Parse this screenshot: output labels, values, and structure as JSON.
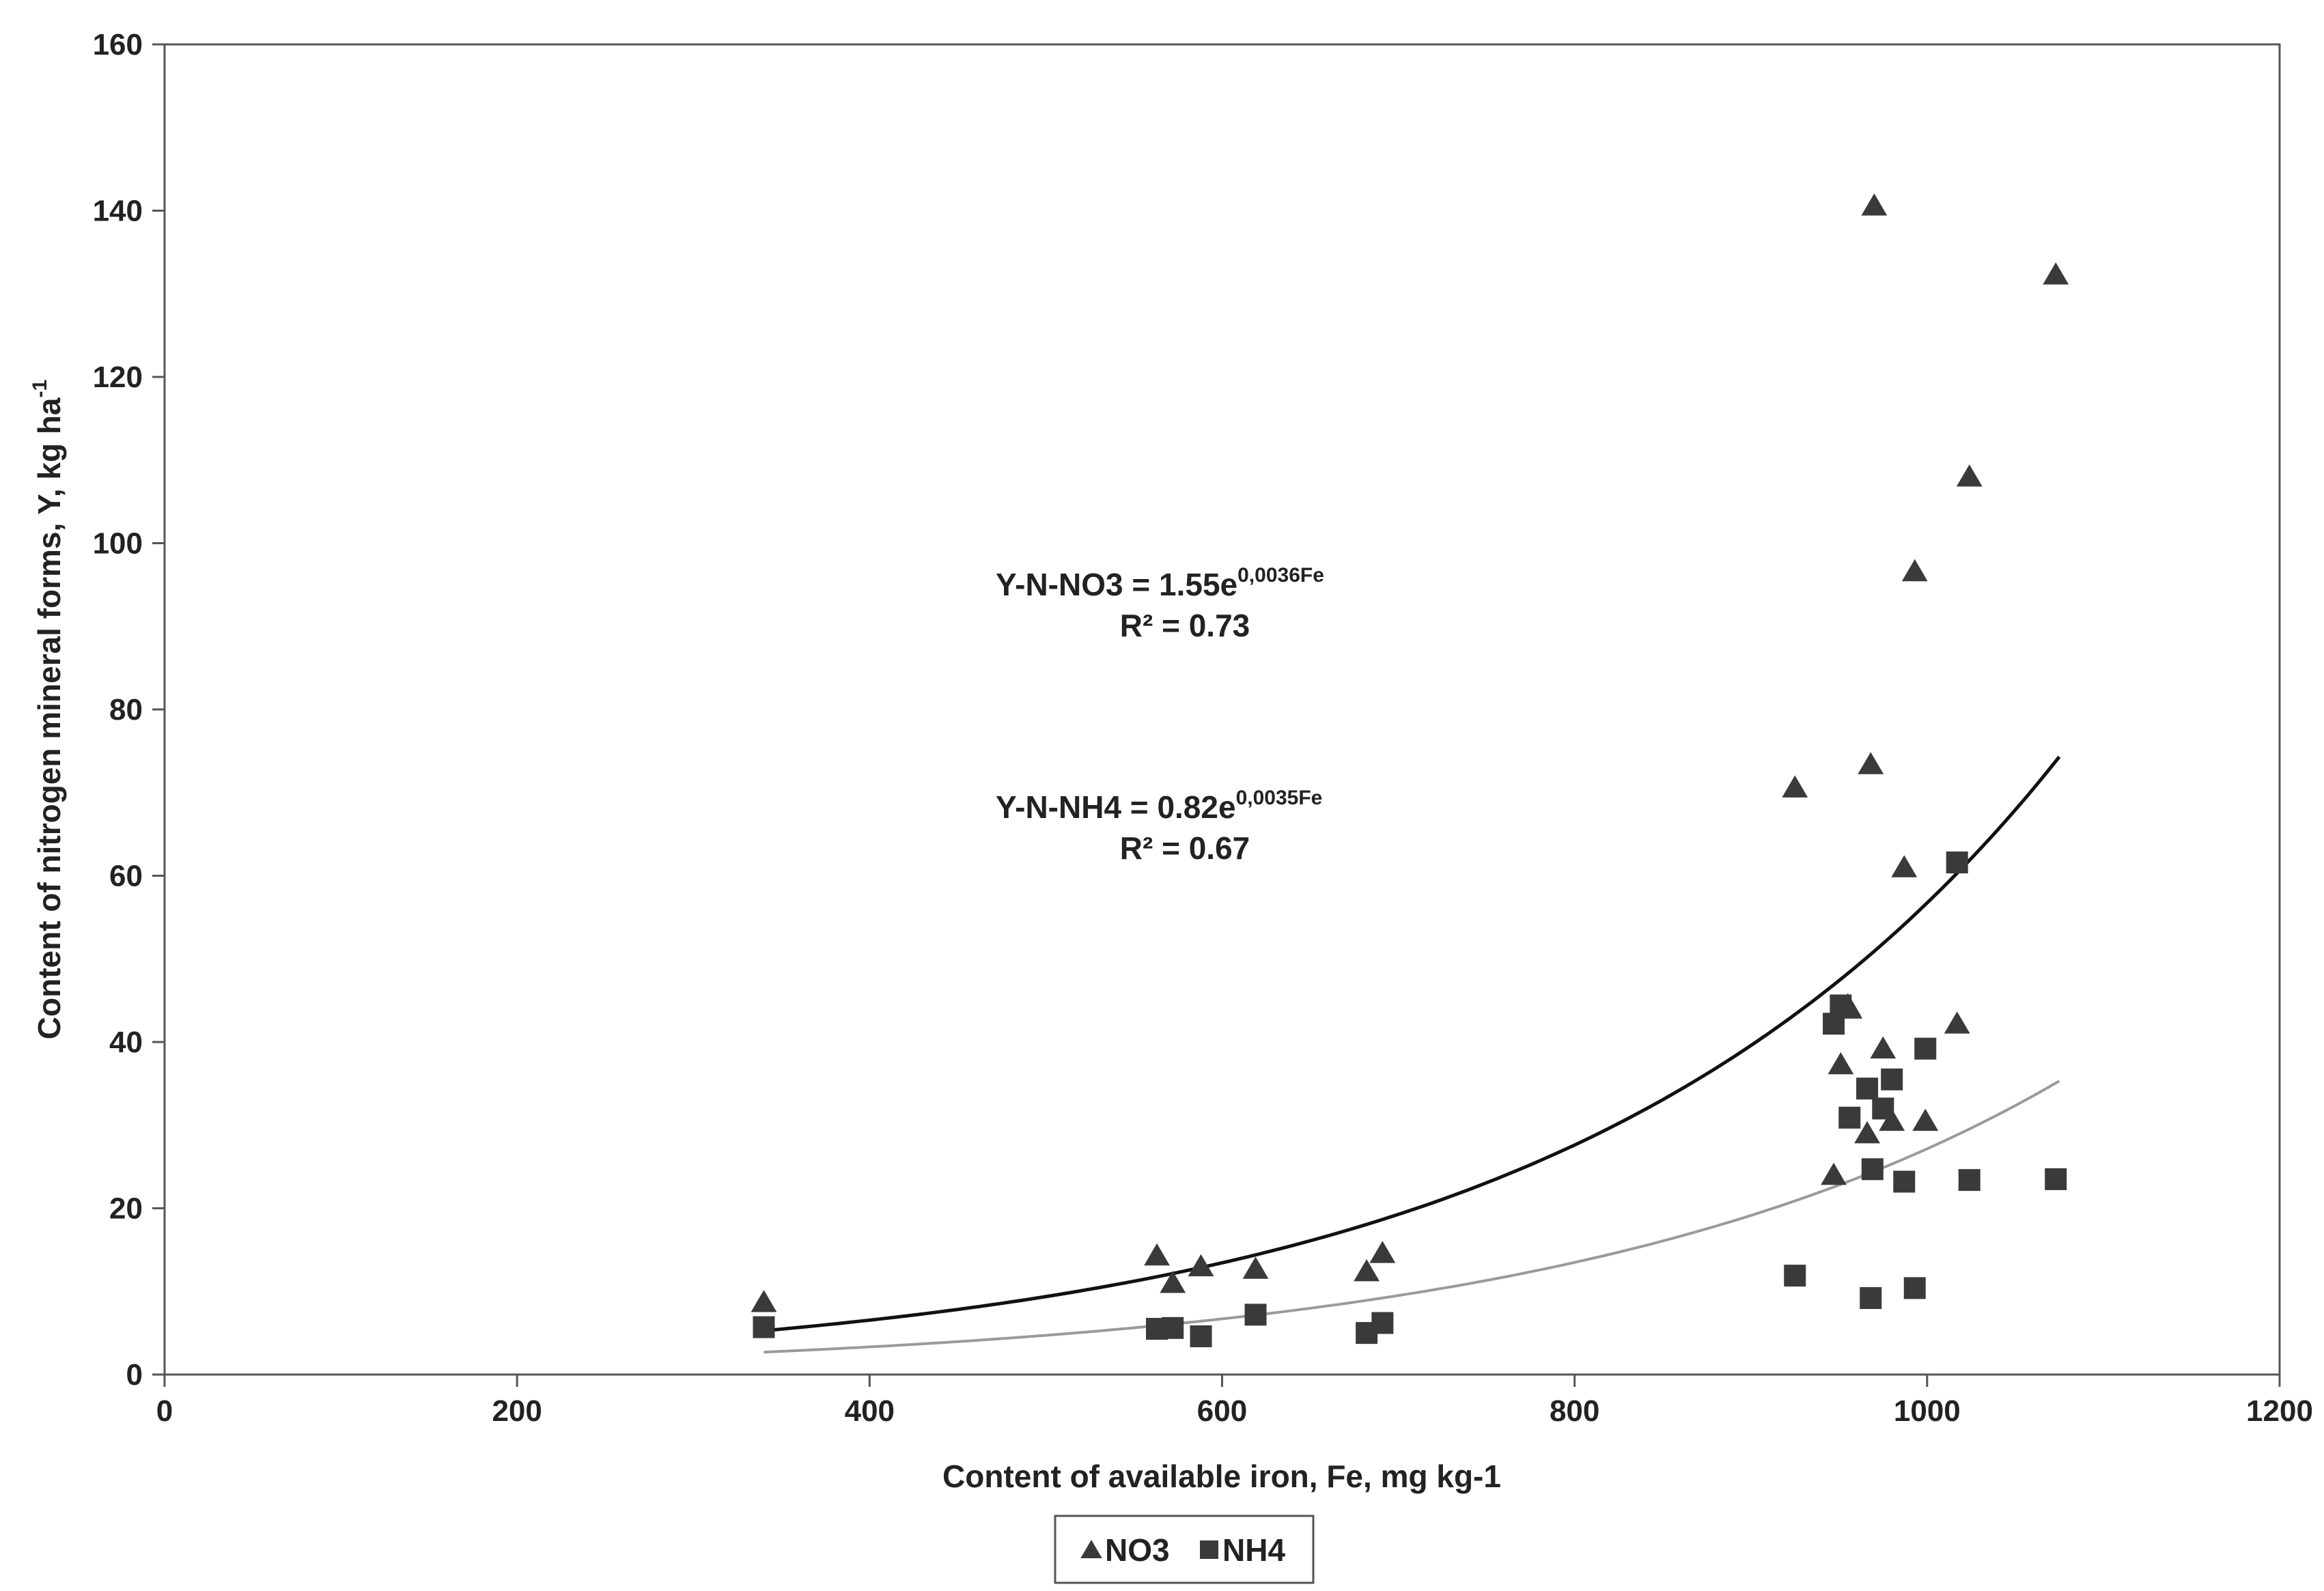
{
  "chart_data": {
    "type": "scatter",
    "title": "",
    "xlabel": "Content of available iron, Fe, mg kg-1",
    "ylabel": "Content of nitrogen mineral forms, Y, kg ha",
    "ylabel_sup": "-1",
    "xlim": [
      0,
      1200
    ],
    "ylim": [
      0,
      160
    ],
    "xticks": [
      0,
      200,
      400,
      600,
      800,
      1000,
      1200
    ],
    "yticks": [
      0,
      20,
      40,
      60,
      80,
      100,
      120,
      140,
      160
    ],
    "grid": false,
    "legend_position": "bottom-center",
    "colors": {
      "NO3": "#3a3a3a",
      "NH4": "#3a3a3a",
      "NO3_trend": "#111111",
      "NH4_trend": "#9a9a9a",
      "axis": "#555555"
    },
    "series": [
      {
        "name": "NO3",
        "marker": "triangle",
        "x": [
          340,
          563,
          572,
          588,
          619,
          682,
          691,
          925,
          947,
          951,
          955,
          956,
          966,
          968,
          970,
          975,
          980,
          987,
          993,
          999,
          1017,
          1024,
          1073
        ],
        "y": [
          8.7,
          14.3,
          11.0,
          13.0,
          12.7,
          12.4,
          14.6,
          70.6,
          24.0,
          37.3,
          44.4,
          44.0,
          29.0,
          73.4,
          140.6,
          39.2,
          30.5,
          61.0,
          96.6,
          30.5,
          42.2,
          108.0,
          132.3
        ]
      },
      {
        "name": "NH4",
        "marker": "square",
        "x": [
          340,
          563,
          572,
          588,
          619,
          682,
          691,
          925,
          947,
          951,
          956,
          966,
          968,
          969,
          975,
          980,
          987,
          993,
          999,
          1017,
          1024,
          1073
        ],
        "y": [
          5.7,
          5.5,
          5.6,
          4.6,
          7.2,
          5.0,
          6.2,
          11.9,
          42.2,
          44.4,
          30.9,
          34.4,
          9.2,
          24.7,
          32.0,
          35.5,
          23.2,
          10.4,
          39.2,
          61.6,
          23.4,
          23.5
        ]
      }
    ],
    "trendlines": [
      {
        "series": "NO3",
        "a": 1.55,
        "b": 0.0036,
        "x_range": [
          340,
          1075
        ],
        "equation_main": "Y-N-NO3  = 1.55e",
        "equation_sup": "0,0036Fe",
        "r2_label": "R² = 0.73"
      },
      {
        "series": "NH4",
        "a": 0.82,
        "b": 0.0035,
        "x_range": [
          340,
          1075
        ],
        "equation_main": "Y-N-NH4  = 0.82e",
        "equation_sup": "0,0035Fe",
        "r2_label": "R² = 0.67"
      }
    ],
    "legend": [
      {
        "label": "NO3",
        "marker": "triangle"
      },
      {
        "label": "NH4",
        "marker": "square"
      }
    ]
  }
}
